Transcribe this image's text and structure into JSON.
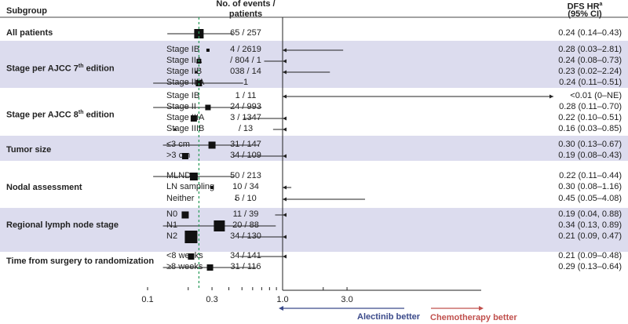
{
  "chart_data": {
    "type": "forest",
    "x_scale": "log",
    "xlim": [
      0.1,
      3.0
    ],
    "x_ticks": [
      "0.1",
      "0.3",
      "1.0",
      "3.0"
    ],
    "reference_line": 1.0,
    "overall_hr_line": 0.24,
    "colors": {
      "band": "#dcdcee",
      "dashed_line": "#2e9e5e",
      "alectinib_arrow": "#3b4a8a",
      "chemo_arrow": "#c0504d"
    },
    "headers": {
      "subgroup": "Subgroup",
      "events": "No. of events / patients",
      "hr_main": "DFS HR",
      "hr_sup": "a",
      "hr_ci": "(95% CI)"
    },
    "favours_left": "Alectinib better",
    "favours_right": "Chemotherapy better",
    "groups": [
      {
        "label": "All patients",
        "rows": [
          {
            "sub": "",
            "events": "65 / 257",
            "hr": 0.24,
            "lo": 0.14,
            "hi": 0.43,
            "text": "0.24 (0.14–0.43)"
          }
        ]
      },
      {
        "label": "Stage per AJCC 7th edition",
        "sup": "th",
        "base": "Stage per AJCC 7",
        "tail": " edition",
        "rows": [
          {
            "sub": "Stage IB",
            "events": "4 / 2619",
            "hr": 0.28,
            "lo": 0.03,
            "hi": 2.81,
            "text": "0.28 (0.03–2.81)"
          },
          {
            "sub": "Stage IIA",
            "events": "/ 804 / 1",
            "hr": 0.24,
            "lo": 0.08,
            "hi": 0.73,
            "text": "0.24 (0.08–0.73)"
          },
          {
            "sub": "Stage IIB",
            "events": "038 / 14",
            "hr": 0.23,
            "lo": 0.02,
            "hi": 2.24,
            "text": "0.23 (0.02–2.24)"
          },
          {
            "sub": "Stage IIIA",
            "events": "1",
            "hr": 0.24,
            "lo": 0.11,
            "hi": 0.51,
            "text": "0.24 (0.11–0.51)"
          }
        ]
      },
      {
        "label": "Stage per AJCC 8th edition",
        "sup": "th",
        "base": "Stage per AJCC 8",
        "tail": " edition",
        "rows": [
          {
            "sub": "Stage IB",
            "events": "1 / 11",
            "hr": 0.01,
            "lo": 0.0,
            "hi": "NE",
            "text": "<0.01 (0–NE)"
          },
          {
            "sub": "Stage II",
            "events": "24 / 993",
            "hr": 0.28,
            "lo": 0.11,
            "hi": 0.7,
            "text": "0.28 (0.11–0.70)"
          },
          {
            "sub": "Stage IIIA",
            "events": "3 / 1347",
            "hr": 0.22,
            "lo": 0.1,
            "hi": 0.51,
            "text": "0.22 (0.10–0.51)"
          },
          {
            "sub": "Stage IIIB",
            "events": "/ 13",
            "hr": 0.16,
            "lo": 0.03,
            "hi": 0.85,
            "text": "0.16 (0.03–0.85)"
          }
        ]
      },
      {
        "label": "Tumor size",
        "rows": [
          {
            "sub": "≤3 cm",
            "events": "31 / 147",
            "hr": 0.3,
            "lo": 0.13,
            "hi": 0.67,
            "text": "0.30 (0.13–0.67)"
          },
          {
            "sub": ">3 cm",
            "events": "34 / 109",
            "hr": 0.19,
            "lo": 0.08,
            "hi": 0.43,
            "text": "0.19 (0.08–0.43)"
          }
        ]
      },
      {
        "label": "Nodal assessment",
        "rows": [
          {
            "sub": "MLND",
            "events": "50 / 213",
            "hr": 0.22,
            "lo": 0.11,
            "hi": 0.44,
            "text": "0.22 (0.11–0.44)"
          },
          {
            "sub": "LN sampling",
            "events": "10 / 34",
            "hr": 0.3,
            "lo": 0.08,
            "hi": 1.16,
            "text": "0.30 (0.08–1.16)"
          },
          {
            "sub": "Neither",
            "events": "5 / 10",
            "hr": 0.45,
            "lo": 0.05,
            "hi": 4.08,
            "text": "0.45 (0.05–4.08)"
          }
        ]
      },
      {
        "label": "Regional lymph node stage",
        "rows": [
          {
            "sub": "N0",
            "events": "11 / 39",
            "hr": 0.19,
            "lo": 0.04,
            "hi": 0.88,
            "text": "0.19 (0.04, 0.88)"
          },
          {
            "sub": "N1",
            "events": "20 / 88",
            "hr": 0.34,
            "lo": 0.13,
            "hi": 0.89,
            "text": "0.34 (0.13, 0.89)"
          },
          {
            "sub": "N2",
            "events": "34 / 130",
            "hr": 0.21,
            "lo": 0.09,
            "hi": 0.47,
            "text": "0.21 (0.09, 0.47)"
          }
        ]
      },
      {
        "label": "Time from surgery to randomization",
        "rows": [
          {
            "sub": "<8 weeks",
            "events": "34 / 141",
            "hr": 0.21,
            "lo": 0.09,
            "hi": 0.48,
            "text": "0.21 (0.09–0.48)"
          },
          {
            "sub": "≥8 weeks",
            "events": "31 / 116",
            "hr": 0.29,
            "lo": 0.13,
            "hi": 0.64,
            "text": "0.29 (0.13–0.64)"
          }
        ]
      }
    ]
  }
}
